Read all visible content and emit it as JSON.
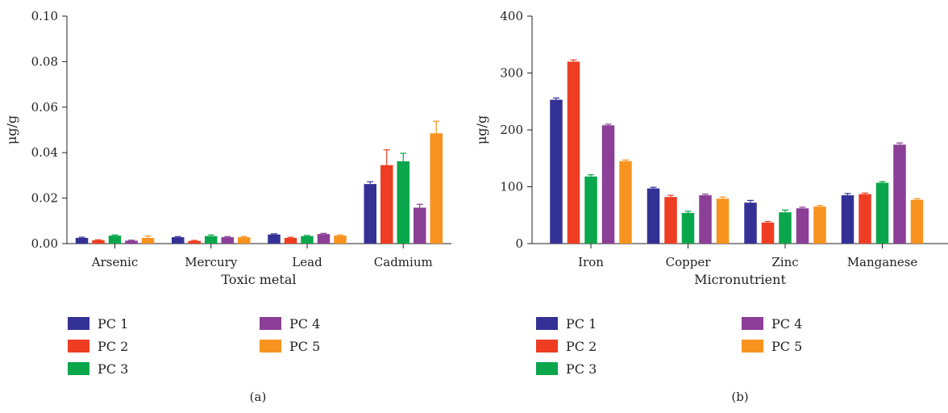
{
  "colors": {
    "PC 1": "#343196",
    "PC 2": "#ee3d23",
    "PC 3": "#0aa64b",
    "PC 4": "#8b3f96",
    "PC 5": "#f7931e"
  },
  "chart_data": [
    {
      "type": "bar",
      "panel_label": "(a)",
      "xlabel": "Toxic metal",
      "ylabel": "μg/g",
      "ylim": [
        0,
        0.1
      ],
      "yticks": [
        "0.00",
        "0.02",
        "0.04",
        "0.06",
        "0.08",
        "0.10"
      ],
      "categories": [
        "Arsenic",
        "Mercury",
        "Lead",
        "Cadmium"
      ],
      "series": [
        {
          "name": "PC 1",
          "values": [
            0.0025,
            0.0028,
            0.004,
            0.0262
          ],
          "errors": [
            0.0003,
            0.0003,
            0.0003,
            0.001
          ]
        },
        {
          "name": "PC 2",
          "values": [
            0.0015,
            0.0012,
            0.0025,
            0.0345
          ],
          "errors": [
            0.0002,
            0.0002,
            0.0003,
            0.0067
          ]
        },
        {
          "name": "PC 3",
          "values": [
            0.0035,
            0.0033,
            0.0033,
            0.0362
          ],
          "errors": [
            0.0003,
            0.0005,
            0.0003,
            0.0035
          ]
        },
        {
          "name": "PC 4",
          "values": [
            0.0013,
            0.0028,
            0.0042,
            0.0158
          ],
          "errors": [
            0.0002,
            0.0003,
            0.0003,
            0.0015
          ]
        },
        {
          "name": "PC 5",
          "values": [
            0.0025,
            0.0028,
            0.0035,
            0.0485
          ],
          "errors": [
            0.0008,
            0.0003,
            0.0003,
            0.0053
          ]
        }
      ],
      "legend": [
        "PC 1",
        "PC 2",
        "PC 3",
        "PC 4",
        "PC 5"
      ]
    },
    {
      "type": "bar",
      "panel_label": "(b)",
      "xlabel": "Micronutrient",
      "ylabel": "μg/g",
      "ylim": [
        0,
        400
      ],
      "yticks": [
        "0",
        "100",
        "200",
        "300",
        "400"
      ],
      "categories": [
        "Iron",
        "Copper",
        "Zinc",
        "Manganese"
      ],
      "series": [
        {
          "name": "PC 1",
          "values": [
            253,
            97,
            72,
            85
          ],
          "errors": [
            3,
            2,
            4,
            3
          ]
        },
        {
          "name": "PC 2",
          "values": [
            320,
            82,
            37,
            87
          ],
          "errors": [
            3,
            3,
            2,
            2
          ]
        },
        {
          "name": "PC 3",
          "values": [
            118,
            54,
            55,
            107
          ],
          "errors": [
            3,
            3,
            4,
            2
          ]
        },
        {
          "name": "PC 4",
          "values": [
            208,
            85,
            62,
            174
          ],
          "errors": [
            2,
            2,
            2,
            3
          ]
        },
        {
          "name": "PC 5",
          "values": [
            145,
            79,
            65,
            77
          ],
          "errors": [
            2,
            3,
            2,
            2
          ]
        }
      ],
      "legend": [
        "PC 1",
        "PC 2",
        "PC 3",
        "PC 4",
        "PC 5"
      ]
    }
  ]
}
